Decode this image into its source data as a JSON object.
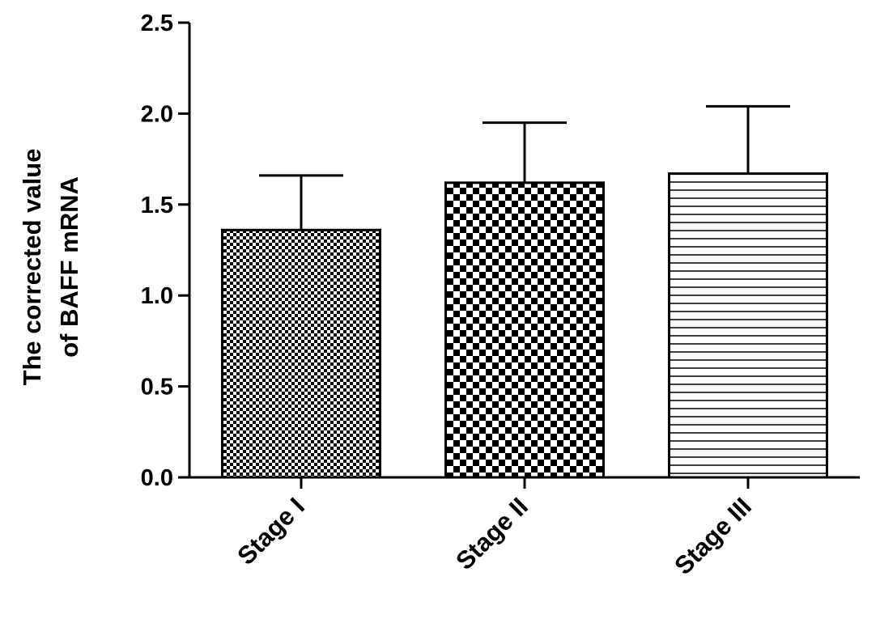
{
  "chart_data": {
    "type": "bar",
    "categories": [
      "Stage I",
      "Stage II",
      "Stage III"
    ],
    "values": [
      1.36,
      1.62,
      1.67
    ],
    "errors": [
      0.3,
      0.33,
      0.37
    ],
    "patterns": [
      "fine-checker",
      "coarse-checker",
      "horizontal-lines"
    ],
    "title": "",
    "xlabel": "",
    "ylabel_lines": [
      "The corrected value",
      "of BAFF mRNA"
    ],
    "ylim": [
      0,
      2.5
    ],
    "yticks": [
      "0.0",
      "0.5",
      "1.0",
      "1.5",
      "2.0",
      "2.5"
    ],
    "grid": false,
    "legend": false
  }
}
